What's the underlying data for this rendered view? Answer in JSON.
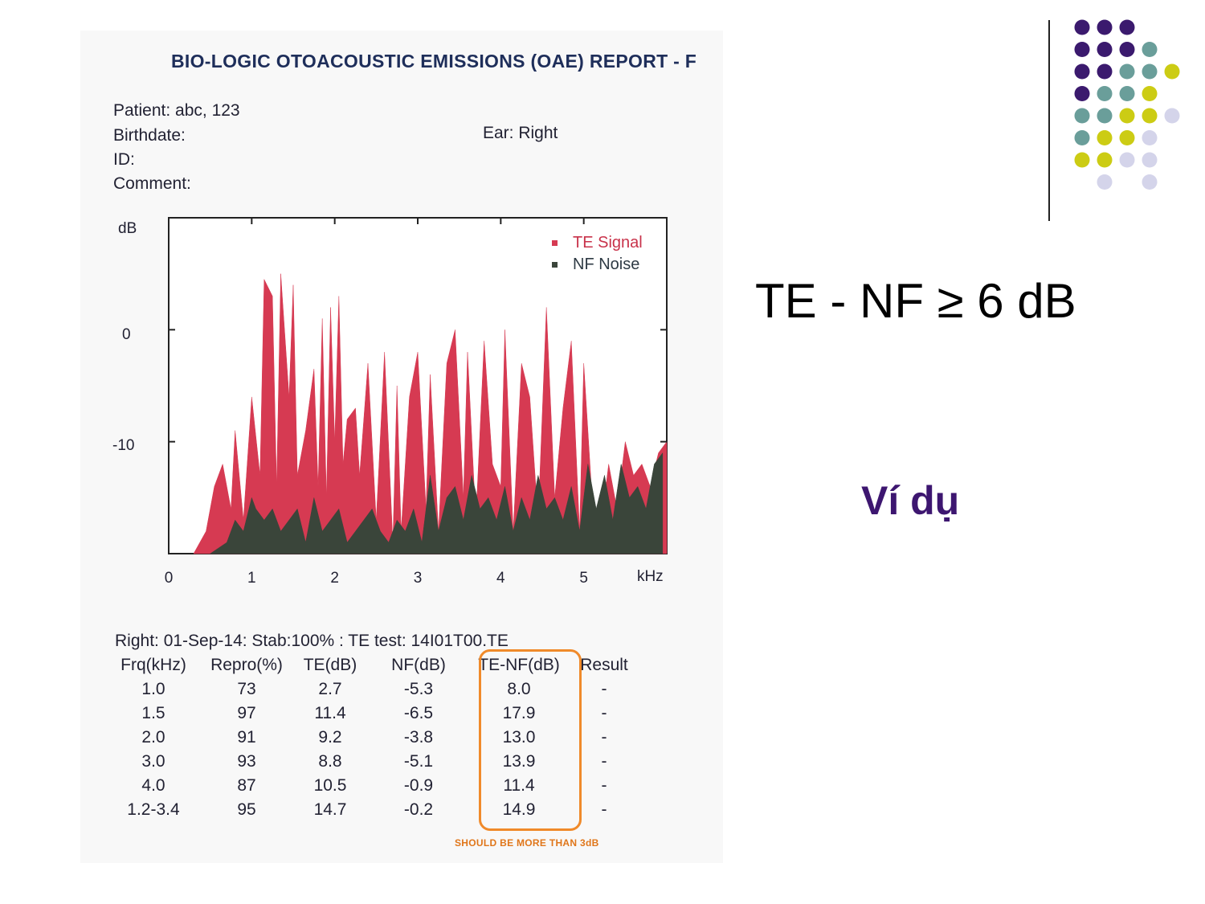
{
  "slide": {
    "formula": "TE - NF ≥ 6 dB",
    "example_label": "Ví dụ",
    "colors": {
      "dark_purple": "#3b1a6e",
      "teal": "#6a9e9a",
      "lime": "#cccc14",
      "lavender": "#d4d4ea",
      "label": "#3d1670"
    }
  },
  "report": {
    "title": "BIO-LOGIC OTOACOUSTIC EMISSIONS (OAE) REPORT - F",
    "patient": "Patient: abc, 123",
    "birthdate": "Birthdate:",
    "id": "ID:",
    "comment": "Comment:",
    "ear": "Ear: Right",
    "summary": "Right: 01-Sep-14: Stab:100% : TE test: 14I01T00.TE",
    "table": {
      "headers": [
        "Frq(kHz)",
        "Repro(%)",
        "TE(dB)",
        "NF(dB)",
        "TE-NF(dB)",
        "Result"
      ],
      "rows": [
        [
          "1.0",
          "73",
          "2.7",
          "-5.3",
          "8.0",
          "-"
        ],
        [
          "1.5",
          "97",
          "11.4",
          "-6.5",
          "17.9",
          "-"
        ],
        [
          "2.0",
          "91",
          "9.2",
          "-3.8",
          "13.0",
          "-"
        ],
        [
          "3.0",
          "93",
          "8.8",
          "-5.1",
          "13.9",
          "-"
        ],
        [
          "4.0",
          "87",
          "10.5",
          "-0.9",
          "11.4",
          "-"
        ],
        [
          "1.2-3.4",
          "95",
          "14.7",
          "-0.2",
          "14.9",
          "-"
        ]
      ]
    },
    "highlight_note": "SHOULD BE MORE THAN 3dB"
  },
  "chart_data": {
    "type": "area",
    "ylabel": "dB",
    "xlabel": "kHz",
    "x_ticks": [
      "0",
      "1",
      "2",
      "3",
      "4",
      "5"
    ],
    "y_ticks": [
      "0",
      "-10"
    ],
    "xlim": [
      0,
      6
    ],
    "ylim": [
      -20,
      10
    ],
    "legend_position": "top-right",
    "series": [
      {
        "name": "TE Signal",
        "color": "#d63a52",
        "x": [
          0.3,
          0.45,
          0.55,
          0.65,
          0.75,
          0.8,
          0.9,
          1.0,
          1.1,
          1.15,
          1.25,
          1.3,
          1.35,
          1.45,
          1.5,
          1.55,
          1.65,
          1.75,
          1.8,
          1.85,
          1.9,
          1.95,
          2.0,
          2.05,
          2.1,
          2.15,
          2.25,
          2.3,
          2.4,
          2.5,
          2.6,
          2.7,
          2.75,
          2.8,
          2.9,
          3.0,
          3.1,
          3.15,
          3.25,
          3.35,
          3.45,
          3.55,
          3.6,
          3.7,
          3.8,
          3.9,
          4.0,
          4.05,
          4.15,
          4.25,
          4.35,
          4.45,
          4.55,
          4.65,
          4.75,
          4.85,
          4.95,
          5.0,
          5.1,
          5.2,
          5.3,
          5.4,
          5.5,
          5.6,
          5.7,
          5.8,
          5.9,
          6.0
        ],
        "y": [
          -20,
          -18,
          -14,
          -12,
          -16,
          -9,
          -17,
          -6,
          -13,
          4.5,
          3,
          -14,
          5,
          -6,
          4,
          -13,
          -9,
          -3.5,
          -14,
          1,
          -15,
          2,
          -10,
          3,
          -12,
          -8,
          -7,
          -13,
          -3,
          -17,
          -2,
          -19,
          -5,
          -18,
          -6,
          -2,
          -16,
          -4,
          -18,
          -3,
          0,
          -15,
          -2,
          -17,
          -1,
          -12,
          -14,
          0,
          -18,
          -3,
          -6,
          -17,
          2,
          -15,
          -7,
          -1,
          -18,
          -3,
          -15,
          -18,
          -12,
          -16,
          -10,
          -13,
          -12,
          -14,
          -11,
          -10
        ]
      },
      {
        "name": "NF Noise",
        "color": "#3a453a",
        "x": [
          0.5,
          0.7,
          0.8,
          0.9,
          1.0,
          1.05,
          1.15,
          1.25,
          1.35,
          1.45,
          1.55,
          1.65,
          1.75,
          1.85,
          1.95,
          2.05,
          2.15,
          2.25,
          2.35,
          2.45,
          2.55,
          2.65,
          2.75,
          2.85,
          2.95,
          3.05,
          3.15,
          3.25,
          3.35,
          3.45,
          3.55,
          3.65,
          3.75,
          3.85,
          3.95,
          4.05,
          4.15,
          4.25,
          4.35,
          4.45,
          4.55,
          4.65,
          4.75,
          4.85,
          4.95,
          5.05,
          5.15,
          5.25,
          5.35,
          5.45,
          5.55,
          5.65,
          5.75,
          5.85,
          5.95
        ],
        "y": [
          -20,
          -19,
          -17,
          -18,
          -15,
          -16,
          -17,
          -16,
          -18,
          -17,
          -16,
          -19,
          -15,
          -18,
          -17,
          -16,
          -19,
          -18,
          -17,
          -16,
          -18,
          -19,
          -17,
          -18,
          -16,
          -19,
          -13,
          -18,
          -15,
          -14,
          -17,
          -13,
          -16,
          -15,
          -17,
          -14,
          -18,
          -15,
          -17,
          -13,
          -16,
          -15,
          -17,
          -14,
          -18,
          -12,
          -16,
          -13,
          -17,
          -12,
          -15,
          -14,
          -16,
          -12,
          -11
        ]
      }
    ]
  }
}
